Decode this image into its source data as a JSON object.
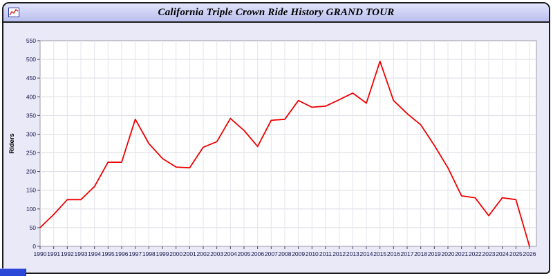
{
  "window": {
    "title": "California Triple Crown Ride History GRAND TOUR"
  },
  "icons": {
    "window_icon": "mini-chart-icon"
  },
  "colors": {
    "window_bg": "#e9e9f8",
    "titlebar_bg": "#c6caf0",
    "plot_bg": "#ffffff",
    "line": "#ee0000",
    "grid": "#dcdce4",
    "tick_text": "#14144a",
    "scroll_fragment": "#2b47d6"
  },
  "chart_data": {
    "type": "line",
    "title": "California Triple Crown Ride History GRAND TOUR",
    "xlabel": "",
    "ylabel": "Riders",
    "ylim": [
      0,
      550
    ],
    "ytick_step": 50,
    "grid": true,
    "legend": "none",
    "line_color": "#ee0000",
    "x": [
      1990,
      1991,
      1992,
      1993,
      1994,
      1995,
      1996,
      1997,
      1998,
      1999,
      2000,
      2001,
      2002,
      2003,
      2004,
      2005,
      2006,
      2007,
      2008,
      2009,
      2010,
      2011,
      2012,
      2013,
      2014,
      2015,
      2016,
      2017,
      2018,
      2019,
      2020,
      2021,
      2022,
      2023,
      2024,
      2025,
      2026
    ],
    "series": [
      {
        "name": "Riders",
        "values": [
          50,
          85,
          125,
          125,
          160,
          225,
          225,
          340,
          275,
          235,
          212,
          210,
          265,
          280,
          342,
          310,
          267,
          337,
          340,
          390,
          372,
          375,
          392,
          410,
          383,
          495,
          390,
          355,
          325,
          270,
          210,
          135,
          130,
          82,
          130,
          125,
          0
        ]
      }
    ]
  }
}
